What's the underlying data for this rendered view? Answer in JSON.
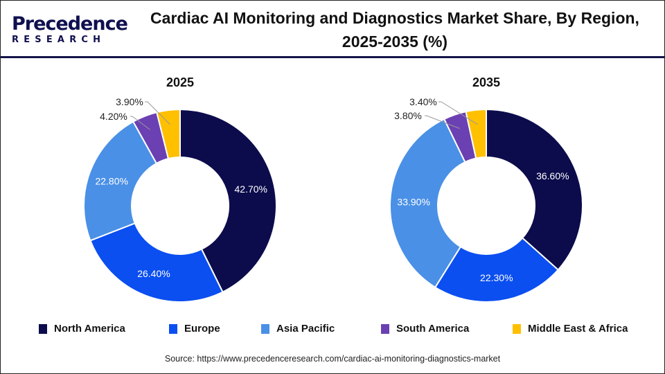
{
  "logo": {
    "line1": "Precedence",
    "line2": "RESEARCH"
  },
  "title": "Cardiac AI Monitoring and Diagnostics Market Share, By Region, 2025-2035 (%)",
  "source": "Source: https://www.precedenceresearch.com/cardiac-ai-monitoring-diagnostics-market",
  "chart_data": [
    {
      "type": "pie",
      "variant": "donut",
      "title": "2025",
      "categories": [
        "North America",
        "Europe",
        "Asia Pacific",
        "South America",
        "Middle East & Africa"
      ],
      "values": [
        42.7,
        26.4,
        22.8,
        4.2,
        3.9
      ],
      "labels": [
        "42.70%",
        "26.40%",
        "22.80%",
        "4.20%",
        "3.90%"
      ]
    },
    {
      "type": "pie",
      "variant": "donut",
      "title": "2035",
      "categories": [
        "North America",
        "Europe",
        "Asia Pacific",
        "South America",
        "Middle East & Africa"
      ],
      "values": [
        36.6,
        22.3,
        33.9,
        3.8,
        3.4
      ],
      "labels": [
        "36.60%",
        "22.30%",
        "33.90%",
        "3.80%",
        "3.40%"
      ]
    }
  ],
  "legend": {
    "placement": "bottom",
    "items": [
      {
        "label": "North America",
        "color": "#0c0c4c"
      },
      {
        "label": "Europe",
        "color": "#0b4ff0"
      },
      {
        "label": "Asia Pacific",
        "color": "#4a90e6"
      },
      {
        "label": "South America",
        "color": "#6b40b2"
      },
      {
        "label": "Middle East & Africa",
        "color": "#ffc000"
      }
    ]
  }
}
